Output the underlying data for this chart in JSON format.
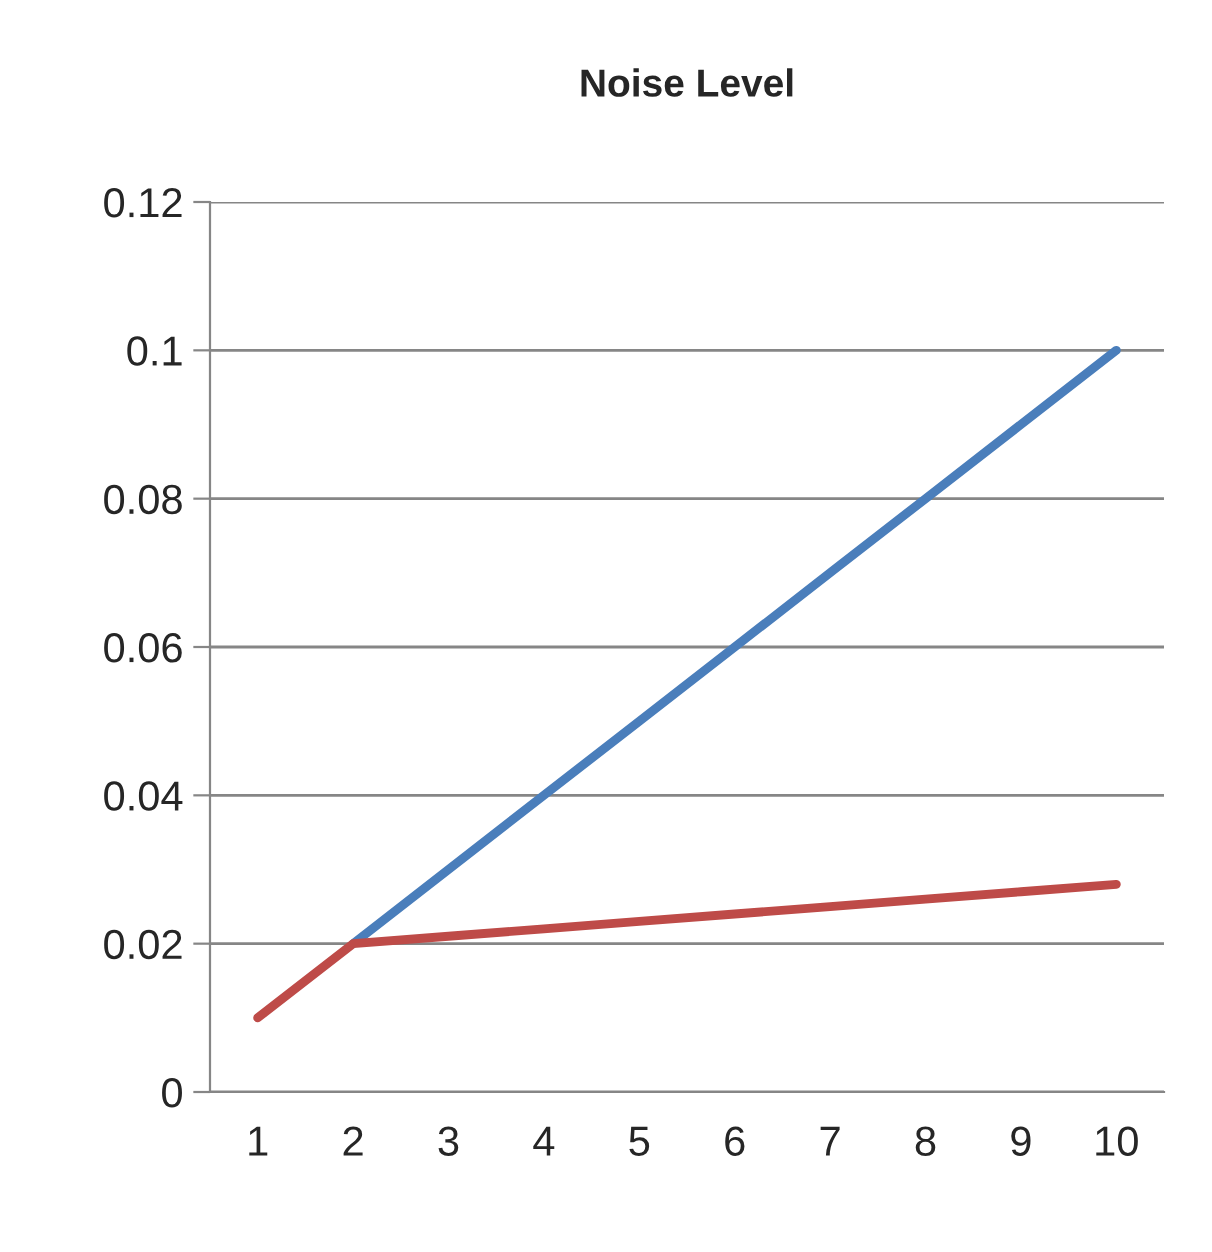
{
  "chart_data": {
    "type": "line",
    "title": "Noise Level",
    "categories": [
      "1",
      "2",
      "3",
      "4",
      "5",
      "6",
      "7",
      "8",
      "9",
      "10"
    ],
    "series": [
      {
        "color": "#4a7ebb",
        "values": [
          null,
          0.02,
          0.03,
          0.04,
          0.05,
          0.06,
          0.07,
          0.08,
          0.09,
          0.1
        ]
      },
      {
        "color": "#be4b48",
        "values": [
          0.01,
          0.02,
          0.021,
          0.022,
          0.023,
          0.024,
          0.025,
          0.026,
          0.027,
          0.028
        ]
      }
    ],
    "ylim": [
      0,
      0.12
    ],
    "yticks": [
      0,
      0.02,
      0.04,
      0.06,
      0.08,
      0.1,
      0.12
    ],
    "grid": "y",
    "legend": false,
    "marker": "none",
    "line_style": "solid"
  }
}
